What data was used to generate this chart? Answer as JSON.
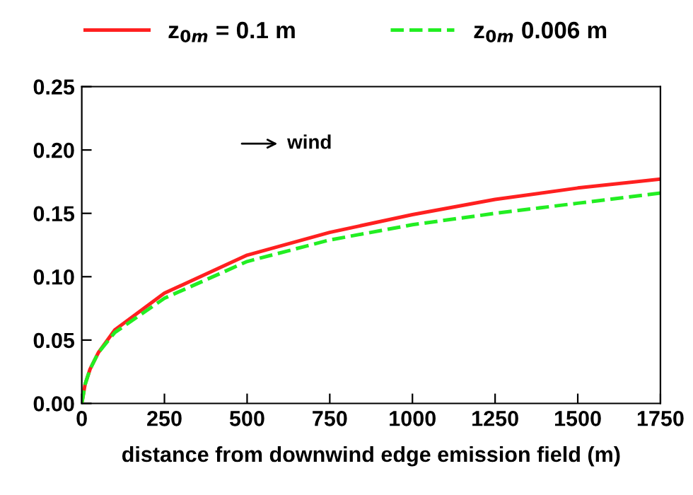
{
  "chart_data": {
    "type": "line",
    "xlabel": "distance from downwind edge emission field (m)",
    "xlim": [
      0,
      1750
    ],
    "xticks": [
      0,
      250,
      500,
      750,
      1000,
      1250,
      1500,
      1750
    ],
    "ylim": [
      0,
      0.25
    ],
    "yticks": [
      {
        "value": 0,
        "label": "0.00"
      },
      {
        "value": 0.05,
        "label": "0.05"
      },
      {
        "value": 0.1,
        "label": "0.10"
      },
      {
        "value": 0.15,
        "label": "0.15"
      },
      {
        "value": 0.2,
        "label": "0.20"
      },
      {
        "value": 0.25,
        "label": "0.25"
      }
    ],
    "x": [
      0,
      10,
      25,
      50,
      100,
      250,
      500,
      750,
      1000,
      1250,
      1500,
      1750
    ],
    "series": [
      {
        "name": "z$_{0m}$ = 0.1 m",
        "color": "#ff2020",
        "line_style": "solid",
        "values": [
          0,
          0.015,
          0.027,
          0.04,
          0.058,
          0.087,
          0.117,
          0.135,
          0.149,
          0.161,
          0.17,
          0.177
        ]
      },
      {
        "name": "z$_{0m}$ 0.006 m",
        "color": "#22ee22",
        "line_style": "dashed",
        "values": [
          0,
          0.015,
          0.027,
          0.04,
          0.056,
          0.083,
          0.112,
          0.129,
          0.141,
          0.15,
          0.158,
          0.166
        ]
      }
    ],
    "annotations": [
      "wind"
    ],
    "legend": "top",
    "grid": false,
    "marker": "none"
  }
}
